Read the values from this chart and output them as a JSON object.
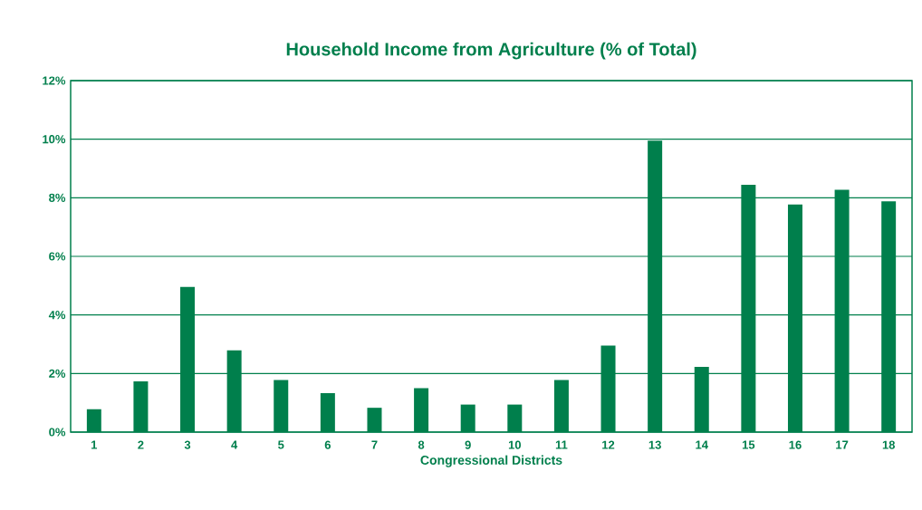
{
  "chart_data": {
    "type": "bar",
    "title": "Household Income from Agriculture (% of Total)",
    "xlabel": "Congressional Districts",
    "categories": [
      "1",
      "2",
      "3",
      "4",
      "5",
      "6",
      "7",
      "8",
      "9",
      "10",
      "11",
      "12",
      "13",
      "14",
      "15",
      "16",
      "17",
      "18"
    ],
    "values": [
      0.78,
      1.73,
      4.96,
      2.79,
      1.78,
      1.33,
      0.83,
      1.5,
      0.94,
      0.94,
      1.78,
      2.95,
      9.95,
      2.23,
      8.44,
      7.77,
      8.27,
      7.88
    ],
    "color": "#007f4c",
    "ylim": [
      0,
      12
    ],
    "yticks": [
      {
        "value": 0,
        "label": "0%"
      },
      {
        "value": 2,
        "label": "2%"
      },
      {
        "value": 4,
        "label": "4%"
      },
      {
        "value": 6,
        "label": "6%"
      },
      {
        "value": 8,
        "label": "8%"
      },
      {
        "value": 10,
        "label": "10%"
      },
      {
        "value": 12,
        "label": "12%"
      }
    ],
    "grid": "y"
  }
}
